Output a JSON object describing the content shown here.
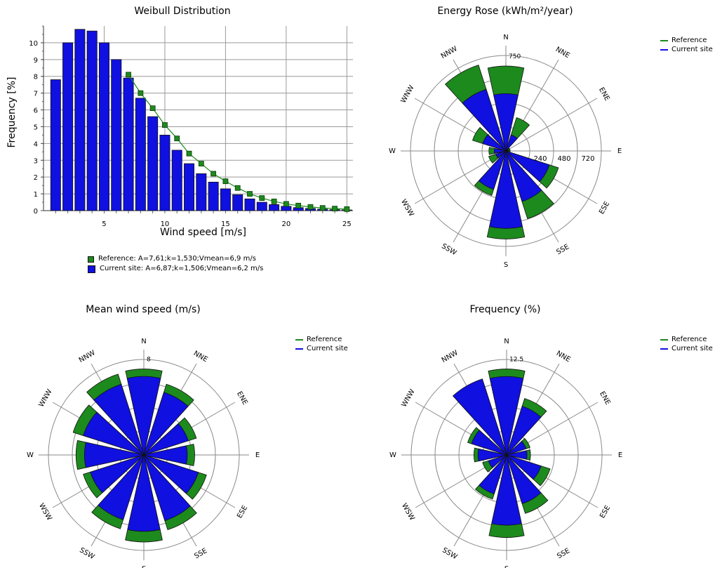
{
  "chart_data": [
    {
      "type": "bar",
      "title": "Weibull Distribution",
      "xlabel": "Wind speed [m/s]",
      "ylabel": "Frequency [%]",
      "xlim": [
        0,
        25.5
      ],
      "ylim": [
        0,
        11
      ],
      "xticks": [
        "5",
        "10",
        "15",
        "20",
        "25"
      ],
      "yticks": [
        "0",
        "1",
        "2",
        "3",
        "4",
        "5",
        "6",
        "7",
        "8",
        "9",
        "10"
      ],
      "grid": true,
      "legend": "bottom",
      "x": [
        1,
        2,
        3,
        4,
        5,
        6,
        7,
        8,
        9,
        10,
        11,
        12,
        13,
        14,
        15,
        16,
        17,
        18,
        19,
        20,
        21,
        22,
        23,
        24,
        25
      ],
      "series": [
        {
          "name": "Reference: A=7,61;k=1,530;Vmean=6,9 m/s",
          "kind": "line-markers",
          "color": "#1d8a1d",
          "x": [
            7,
            8,
            9,
            10,
            11,
            12,
            13,
            14,
            15,
            16,
            17,
            18,
            19,
            20,
            21,
            22,
            23,
            24,
            25
          ],
          "values": [
            8.1,
            7.0,
            6.1,
            5.1,
            4.3,
            3.4,
            2.8,
            2.2,
            1.75,
            1.35,
            1.0,
            0.75,
            0.55,
            0.4,
            0.3,
            0.22,
            0.16,
            0.12,
            0.09
          ]
        },
        {
          "name": "Current site: A=6,87;k=1,506;Vmean=6,2 m/s",
          "kind": "bar",
          "color": "#1010e0",
          "values": [
            7.8,
            10.0,
            10.8,
            10.7,
            10.0,
            9.0,
            7.9,
            6.7,
            5.6,
            4.5,
            3.6,
            2.8,
            2.2,
            1.7,
            1.3,
            0.95,
            0.7,
            0.5,
            0.36,
            0.26,
            0.18,
            0.13,
            0.09,
            0.06,
            0.04
          ]
        }
      ]
    },
    {
      "type": "polar-bar",
      "title": "Energy Rose (kWh/m²/year)",
      "directions": [
        "N",
        "NNE",
        "ENE",
        "E",
        "ESE",
        "SSE",
        "S",
        "SSW",
        "WSW",
        "W",
        "WNW",
        "NNW"
      ],
      "ring_labels": [
        "240",
        "480",
        "720"
      ],
      "north_label": "750",
      "rmax": 900,
      "series": [
        {
          "name": "Reference",
          "color": "#1d8a1d",
          "values": [
            800,
            330,
            40,
            40,
            520,
            670,
            830,
            440,
            170,
            160,
            330,
            850
          ]
        },
        {
          "name": "Current site",
          "color": "#1010e0",
          "values": [
            540,
            160,
            20,
            25,
            430,
            500,
            730,
            380,
            100,
            110,
            230,
            610
          ]
        }
      ]
    },
    {
      "type": "polar-bar",
      "title": "Mean wind speed (m/s)",
      "directions": [
        "N",
        "NNE",
        "ENE",
        "E",
        "ESE",
        "SSE",
        "S",
        "SSW",
        "WSW",
        "W",
        "WNW",
        "NNW"
      ],
      "north_label": "8",
      "rmax": 9,
      "series": [
        {
          "name": "Reference",
          "color": "#1d8a1d",
          "values": [
            8.1,
            7.0,
            5.2,
            4.8,
            6.2,
            7.4,
            8.2,
            7.3,
            6.0,
            6.4,
            7.0,
            8.0
          ]
        },
        {
          "name": "Current site",
          "color": "#1010e0",
          "values": [
            7.4,
            6.2,
            4.4,
            4.1,
            5.4,
            6.5,
            7.2,
            6.4,
            5.3,
            5.6,
            6.0,
            7.0
          ]
        }
      ]
    },
    {
      "type": "polar-bar",
      "title": "Frequency (%)",
      "directions": [
        "N",
        "NNE",
        "ENE",
        "E",
        "ESE",
        "SSE",
        "S",
        "SSW",
        "WSW",
        "W",
        "WNW",
        "NNW"
      ],
      "north_label": "12.5",
      "rmax": 14,
      "series": [
        {
          "name": "Reference",
          "color": "#1d8a1d",
          "values": [
            12.6,
            8.7,
            3.6,
            3.5,
            6.7,
            9.0,
            12.1,
            6.8,
            3.7,
            4.8,
            6.0,
            10.7
          ]
        },
        {
          "name": "Current site",
          "color": "#1010e0",
          "values": [
            11.5,
            7.5,
            3.0,
            3.0,
            5.3,
            7.5,
            10.3,
            6.0,
            2.8,
            4.2,
            5.4,
            11.7
          ]
        }
      ]
    }
  ]
}
